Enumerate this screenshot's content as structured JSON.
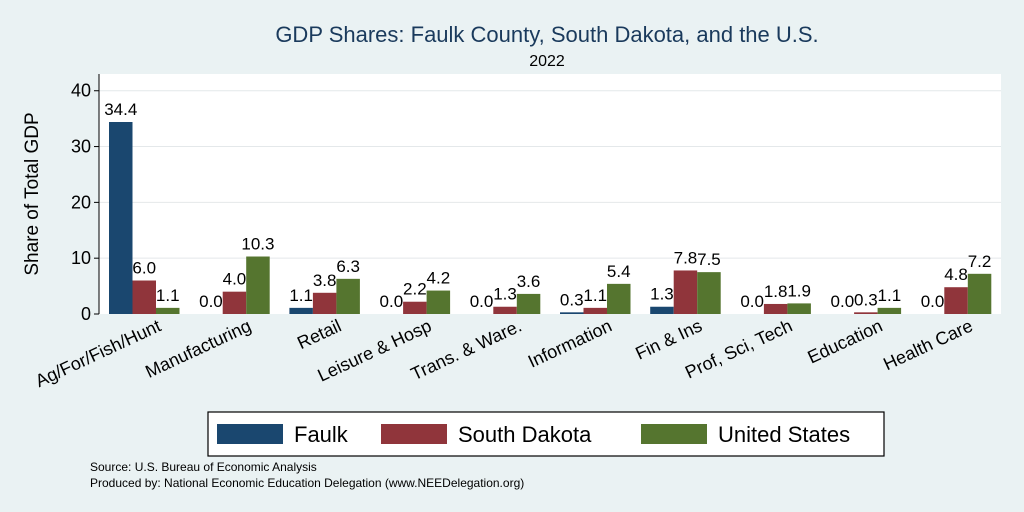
{
  "chart_data": {
    "type": "bar",
    "title": "GDP Shares: Faulk County, South Dakota, and the U.S.",
    "subtitle": "2022",
    "xlabel": "",
    "ylabel": "Share of Total GDP",
    "ylim": [
      0,
      43
    ],
    "yticks": [
      0,
      10,
      20,
      30,
      40
    ],
    "grid": true,
    "categories": [
      "Ag/For/Fish/Hunt",
      "Manufacturing",
      "Retail",
      "Leisure & Hosp",
      "Trans. & Ware.",
      "Information",
      "Fin & Ins",
      "Prof, Sci, Tech",
      "Education",
      "Health Care"
    ],
    "series": [
      {
        "name": "Faulk",
        "color": "#1a476f",
        "values": [
          34.4,
          0.0,
          1.1,
          0.0,
          0.0,
          0.3,
          1.3,
          0.0,
          0.0,
          0.0
        ]
      },
      {
        "name": "South Dakota",
        "color": "#90353b",
        "values": [
          6.0,
          4.0,
          3.8,
          2.2,
          1.3,
          1.1,
          7.8,
          1.8,
          0.3,
          4.8
        ]
      },
      {
        "name": "United States",
        "color": "#55752f",
        "values": [
          1.1,
          10.3,
          6.3,
          4.2,
          3.6,
          5.4,
          7.5,
          1.9,
          1.1,
          7.2
        ]
      }
    ],
    "legend_position": "bottom",
    "notes": [
      "Source: U.S. Bureau of Economic Analysis",
      "Produced by: National Economic Education Delegation (www.NEEDelegation.org)"
    ]
  }
}
